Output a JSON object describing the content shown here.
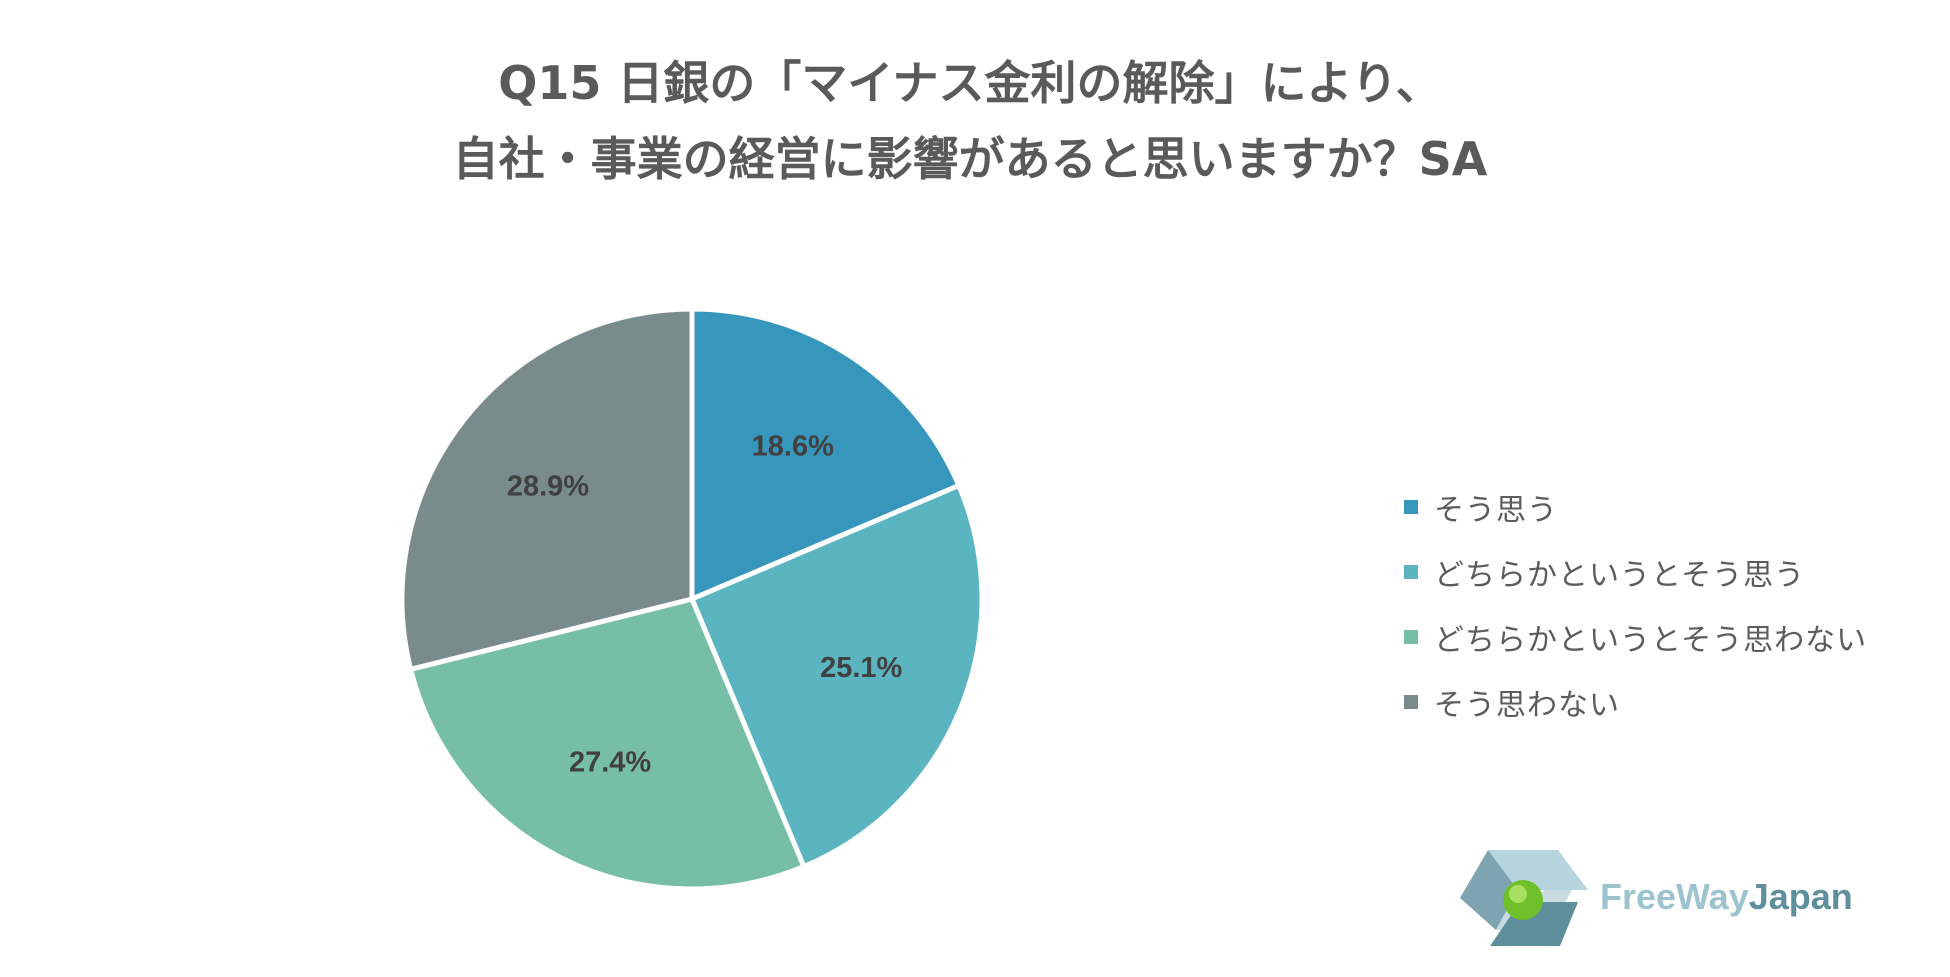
{
  "title": {
    "line1": "Q15 日銀の「マイナス金利の解除」により、",
    "line2": "自社・事業の経営に影響があると思いますか？SA"
  },
  "chart_data": {
    "type": "pie",
    "categories": [
      "そう思う",
      "どちらかというとそう思う",
      "どちらかというとそう思わない",
      "そう思わない"
    ],
    "values": [
      18.6,
      25.1,
      27.4,
      28.9
    ],
    "labels": [
      "18.6%",
      "25.1%",
      "27.4%",
      "28.9%"
    ],
    "colors": [
      "#3796bb",
      "#5ab5c0",
      "#77bea6",
      "#798b8b"
    ],
    "start_angle": "12 o'clock",
    "direction": "clockwise",
    "legend_position": "right",
    "title": "Q15 日銀の「マイナス金利の解除」により、自社・事業の経営に影響があると思いますか？SA"
  },
  "logo": {
    "text_part1": "FreeWay",
    "text_part2": "Japan",
    "color_part1": "#9dc3cf",
    "color_part2": "#5f8f9c"
  }
}
